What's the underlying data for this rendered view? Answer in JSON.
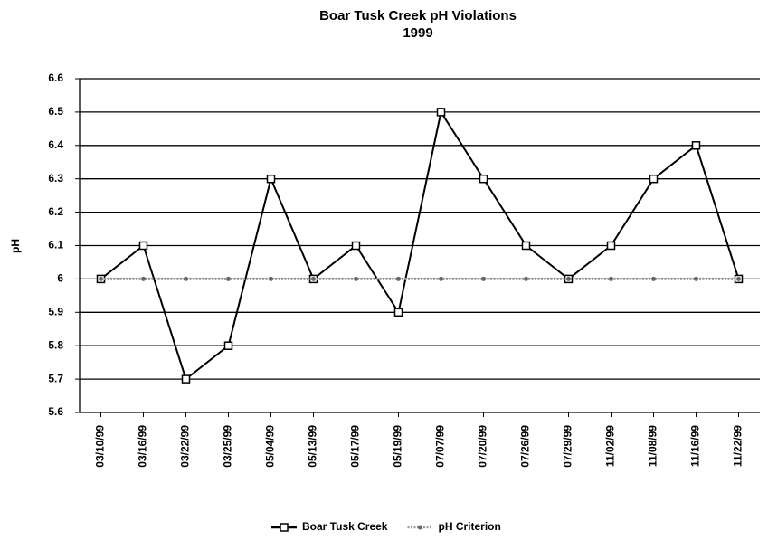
{
  "chart_data": {
    "type": "line",
    "title": "Boar Tusk Creek pH Violations",
    "subtitle": "1999",
    "y_label": "pH",
    "categories": [
      "03/10/99",
      "03/16/99",
      "03/22/99",
      "03/25/99",
      "05/04/99",
      "05/13/99",
      "05/17/99",
      "05/19/99",
      "07/07/99",
      "07/20/99",
      "07/26/99",
      "07/29/99",
      "11/02/99",
      "11/08/99",
      "11/16/99",
      "11/22/99"
    ],
    "series": [
      {
        "name": "Boar Tusk Creek",
        "color": "#000000",
        "values": [
          6.0,
          6.1,
          5.7,
          5.8,
          6.3,
          6.0,
          6.1,
          5.9,
          6.5,
          6.3,
          6.1,
          6.0,
          6.1,
          6.3,
          6.4,
          6.0
        ]
      },
      {
        "name": "pH Criterion",
        "color": "#999999",
        "values": [
          6,
          6,
          6,
          6,
          6,
          6,
          6,
          6,
          6,
          6,
          6,
          6,
          6,
          6,
          6,
          6
        ]
      }
    ],
    "ylim": [
      5.6,
      6.6
    ],
    "yticks": [
      5.6,
      5.7,
      5.8,
      5.9,
      6,
      6.1,
      6.2,
      6.3,
      6.4,
      6.5,
      6.6
    ],
    "grid": true,
    "legend": "bottom"
  }
}
